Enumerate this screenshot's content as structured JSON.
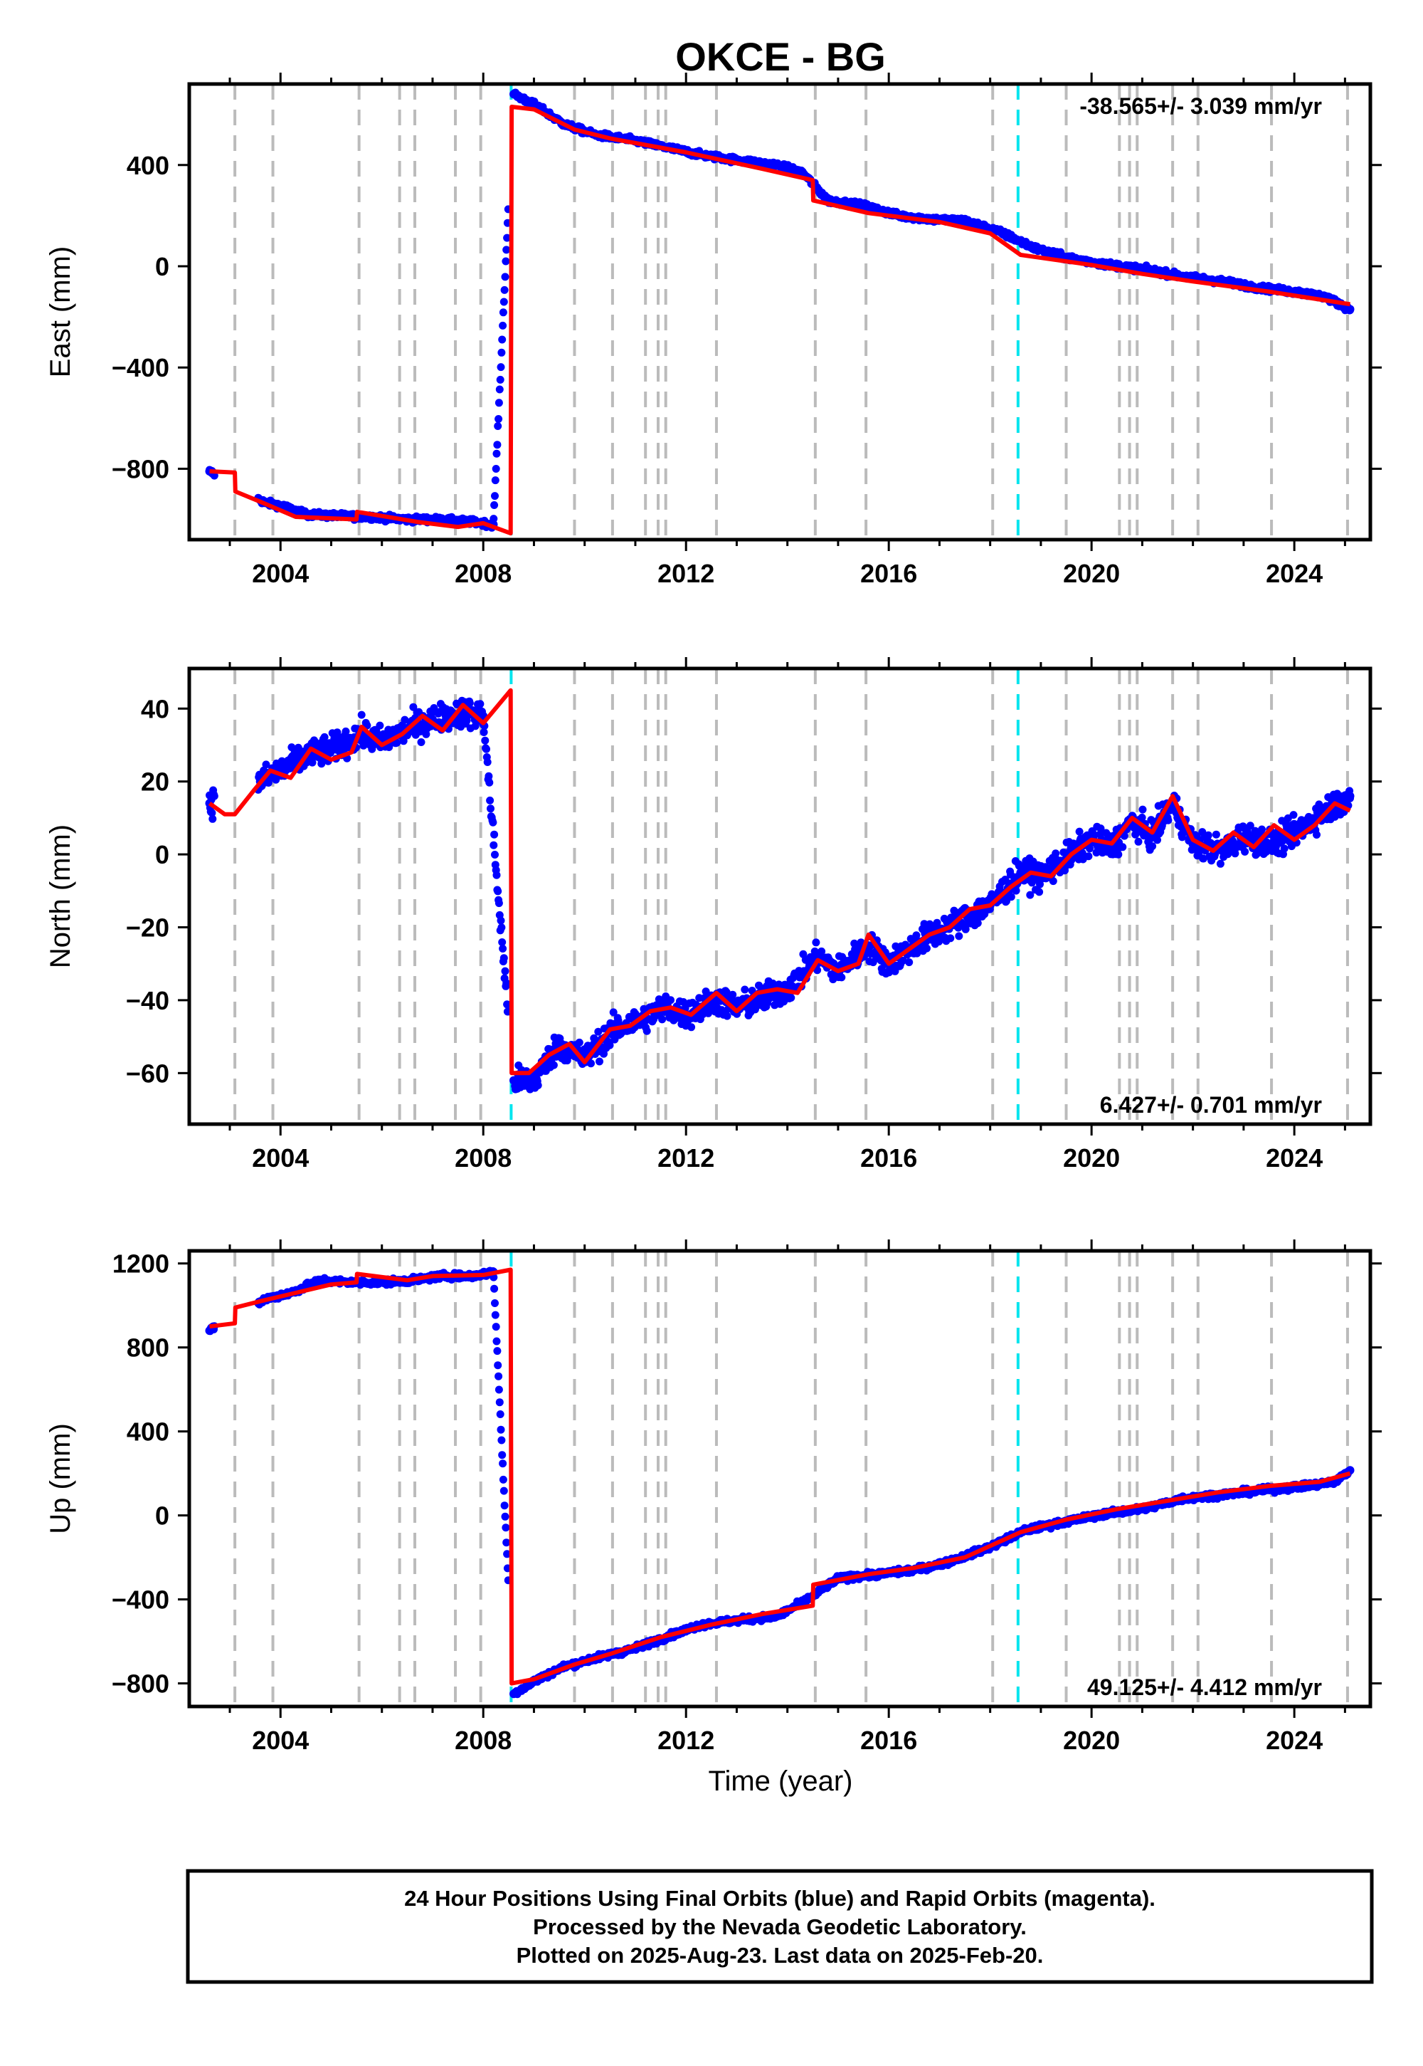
{
  "title": "OKCE - BG",
  "xlabel": "Time (year)",
  "footer": {
    "line1": "24 Hour Positions Using Final Orbits (blue) and Rapid Orbits (magenta).",
    "line2": "Processed by the Nevada Geodetic Laboratory.",
    "line3": "Plotted on 2025-Aug-23. Last data on 2025-Feb-20."
  },
  "colors": {
    "data_points": "#0000ff",
    "model": "#ff0000",
    "equipment_change": "#bbbbbb",
    "earthquake": "#00e5ee",
    "frame": "#000000"
  },
  "chart_data": [
    {
      "type": "scatter",
      "component": "East",
      "ylabel": "East (mm)",
      "xlim": [
        2002.2,
        2025.5
      ],
      "ylim": [
        -1080,
        720
      ],
      "xticks": [
        2004,
        2008,
        2012,
        2016,
        2020,
        2024
      ],
      "yticks": [
        -800,
        -400,
        0,
        400
      ],
      "rate_label": "-38.565+/- 3.039 mm/yr",
      "rate_position": "top-right",
      "jump": {
        "x": 2008.55,
        "before": -1055,
        "after": 630
      },
      "model": {
        "name": "model",
        "x": [
          2002.6,
          2003.1,
          2003.11,
          2003.6,
          2004.3,
          2005.5,
          2005.51,
          2006.7,
          2007.5,
          2008.0,
          2008.54,
          2008.56,
          2009.0,
          2009.8,
          2010.5,
          2012.0,
          2013.5,
          2014.5,
          2014.51,
          2015.6,
          2017.0,
          2018.0,
          2018.6,
          2020.0,
          2021.0,
          2022.0,
          2023.5,
          2025.1
        ],
        "y": [
          -810,
          -815,
          -890,
          -930,
          -990,
          -1000,
          -970,
          -1010,
          -1030,
          -1015,
          -1055,
          630,
          620,
          540,
          505,
          450,
          385,
          340,
          260,
          210,
          175,
          130,
          45,
          5,
          -30,
          -60,
          -100,
          -150
        ]
      },
      "data": {
        "name": "positions",
        "x": [
          2002.6,
          2003.7,
          2004.0,
          2004.5,
          2005.0,
          2005.8,
          2006.5,
          2007.0,
          2007.8,
          2008.2,
          2008.6,
          2009.0,
          2009.6,
          2010.2,
          2010.9,
          2011.6,
          2012.3,
          2013.0,
          2013.8,
          2014.3,
          2014.8,
          2015.5,
          2016.2,
          2016.9,
          2017.5,
          2018.2,
          2018.9,
          2019.5,
          2020.2,
          2021.0,
          2021.8,
          2022.6,
          2023.3,
          2024.0,
          2024.6,
          2025.1
        ],
        "y": [
          -810,
          -935,
          -945,
          -980,
          -985,
          -990,
          -1000,
          -1000,
          -1010,
          -1020,
          680,
          640,
          560,
          520,
          500,
          470,
          440,
          420,
          400,
          370,
          260,
          240,
          200,
          185,
          180,
          135,
          70,
          35,
          10,
          -10,
          -40,
          -60,
          -85,
          -100,
          -120,
          -170
        ]
      }
    },
    {
      "type": "scatter",
      "component": "North",
      "ylabel": "North (mm)",
      "xlim": [
        2002.2,
        2025.5
      ],
      "ylim": [
        -74,
        51
      ],
      "xticks": [
        2004,
        2008,
        2012,
        2016,
        2020,
        2024
      ],
      "yticks": [
        -60,
        -40,
        -20,
        0,
        20,
        40
      ],
      "rate_label": "6.427+/- 0.701 mm/yr",
      "rate_position": "bottom-right",
      "jump": {
        "x": 2008.55,
        "before": 45,
        "after": -60
      },
      "model": {
        "name": "model",
        "x": [
          2002.6,
          2002.9,
          2003.1,
          2003.5,
          2003.8,
          2004.2,
          2004.6,
          2005.0,
          2005.4,
          2005.6,
          2006.0,
          2006.4,
          2006.8,
          2007.2,
          2007.6,
          2008.0,
          2008.54,
          2008.56,
          2008.9,
          2009.3,
          2009.7,
          2010.0,
          2010.5,
          2010.9,
          2011.3,
          2011.7,
          2012.1,
          2012.6,
          2013.0,
          2013.4,
          2013.8,
          2014.2,
          2014.6,
          2015.0,
          2015.4,
          2015.6,
          2016.0,
          2016.4,
          2016.8,
          2017.2,
          2017.6,
          2018.0,
          2018.4,
          2018.8,
          2019.2,
          2019.6,
          2020.0,
          2020.4,
          2020.8,
          2021.2,
          2021.6,
          2022.0,
          2022.4,
          2022.8,
          2023.2,
          2023.6,
          2024.0,
          2024.4,
          2024.8,
          2025.1
        ],
        "y": [
          14,
          11,
          11,
          18,
          23,
          21,
          29,
          26,
          28,
          35,
          30,
          33,
          38,
          34,
          41,
          36,
          45,
          -60,
          -60,
          -55,
          -52,
          -57,
          -48,
          -47,
          -43,
          -42,
          -44,
          -38,
          -43,
          -38,
          -37,
          -38,
          -29,
          -32,
          -30,
          -22,
          -30,
          -26,
          -22,
          -20,
          -15,
          -14,
          -9,
          -5,
          -6,
          0,
          4,
          3,
          10,
          6,
          16,
          4,
          1,
          6,
          2,
          8,
          4,
          8,
          14,
          12
        ]
      },
      "data": {
        "name": "positions",
        "x": [
          2002.6,
          2003.6,
          2004.0,
          2004.5,
          2005.0,
          2005.6,
          2006.0,
          2006.6,
          2007.0,
          2007.6,
          2008.0,
          2008.6,
          2009.0,
          2009.5,
          2010.0,
          2010.6,
          2011.0,
          2011.6,
          2012.0,
          2012.6,
          2013.0,
          2013.6,
          2014.0,
          2014.6,
          2015.0,
          2015.6,
          2016.0,
          2016.6,
          2017.0,
          2017.6,
          2018.0,
          2018.6,
          2019.0,
          2019.6,
          2020.0,
          2020.4,
          2020.8,
          2021.2,
          2021.6,
          2022.0,
          2022.6,
          2023.0,
          2023.6,
          2024.0,
          2024.6,
          2025.1
        ],
        "y": [
          14,
          20,
          23,
          27,
          29,
          33,
          31,
          35,
          37,
          39,
          38,
          -62,
          -62,
          -52,
          -56,
          -48,
          -46,
          -42,
          -44,
          -40,
          -42,
          -39,
          -37,
          -28,
          -32,
          -25,
          -30,
          -24,
          -21,
          -17,
          -14,
          -5,
          -6,
          0,
          4,
          2,
          9,
          5,
          14,
          3,
          1,
          5,
          3,
          6,
          12,
          16
        ]
      }
    },
    {
      "type": "scatter",
      "component": "Up",
      "ylabel": "Up (mm)",
      "xlim": [
        2002.2,
        2025.5
      ],
      "ylim": [
        -910,
        1260
      ],
      "xticks": [
        2004,
        2008,
        2012,
        2016,
        2020,
        2024
      ],
      "yticks": [
        -800,
        -400,
        0,
        400,
        800,
        1200
      ],
      "rate_label": "49.125+/- 4.412 mm/yr",
      "rate_position": "bottom-right",
      "jump": {
        "x": 2008.55,
        "before": 1170,
        "after": -800
      },
      "model": {
        "name": "model",
        "x": [
          2002.6,
          2003.1,
          2003.11,
          2003.6,
          2004.3,
          2005.0,
          2005.5,
          2005.51,
          2006.5,
          2007.0,
          2008.0,
          2008.54,
          2008.56,
          2009.0,
          2009.8,
          2010.5,
          2011.5,
          2012.5,
          2013.5,
          2014.5,
          2014.51,
          2015.6,
          2016.5,
          2017.5,
          2018.6,
          2019.5,
          2020.5,
          2021.5,
          2022.5,
          2023.5,
          2024.5,
          2025.1
        ],
        "y": [
          900,
          915,
          990,
          1020,
          1060,
          1100,
          1110,
          1150,
          1120,
          1140,
          1145,
          1170,
          -800,
          -780,
          -710,
          -660,
          -580,
          -520,
          -470,
          -430,
          -330,
          -280,
          -250,
          -200,
          -80,
          -20,
          30,
          70,
          110,
          140,
          160,
          200
        ]
      },
      "data": {
        "name": "positions",
        "x": [
          2002.6,
          2003.7,
          2004.2,
          2004.8,
          2005.4,
          2006.0,
          2006.6,
          2007.2,
          2007.8,
          2008.2,
          2008.6,
          2009.0,
          2009.6,
          2010.2,
          2010.9,
          2011.6,
          2012.3,
          2013.0,
          2013.8,
          2014.4,
          2015.0,
          2015.8,
          2016.5,
          2017.2,
          2018.0,
          2018.7,
          2019.5,
          2020.3,
          2021.0,
          2021.8,
          2022.6,
          2023.4,
          2024.2,
          2024.8,
          2025.1
        ],
        "y": [
          880,
          1030,
          1060,
          1120,
          1110,
          1110,
          1120,
          1140,
          1140,
          1160,
          -850,
          -790,
          -720,
          -680,
          -640,
          -580,
          -520,
          -500,
          -480,
          -400,
          -300,
          -280,
          -260,
          -220,
          -150,
          -70,
          -30,
          10,
          30,
          80,
          100,
          120,
          140,
          160,
          215
        ]
      }
    }
  ],
  "equipment_changes": [
    2003.1,
    2003.85,
    2005.55,
    2006.35,
    2006.65,
    2007.45,
    2007.95,
    2009.8,
    2010.55,
    2011.2,
    2011.45,
    2011.6,
    2012.6,
    2014.55,
    2015.55,
    2018.05,
    2019.5,
    2020.55,
    2020.75,
    2020.9,
    2021.6,
    2022.1,
    2023.55,
    2025.05
  ],
  "earthquakes": [
    2008.55,
    2018.55
  ]
}
